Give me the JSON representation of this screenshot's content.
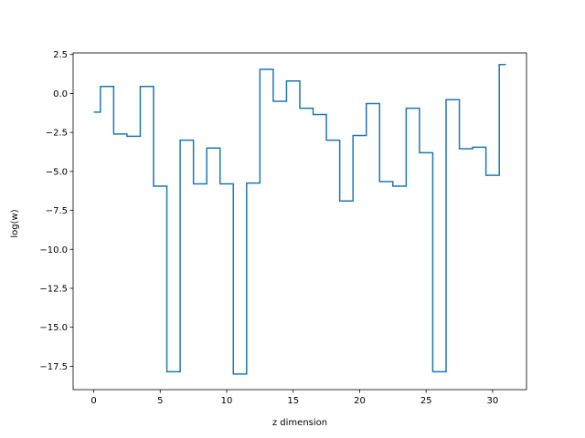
{
  "chart_data": {
    "type": "line",
    "drawstyle": "steps-mid",
    "title": "",
    "xlabel": "z dimension",
    "ylabel": "log(w)",
    "xlim": [
      -1.55,
      32.55
    ],
    "ylim": [
      -19.0,
      2.6
    ],
    "xticks": [
      0,
      5,
      10,
      15,
      20,
      25,
      30
    ],
    "xtick_labels": [
      "0",
      "5",
      "10",
      "15",
      "20",
      "25",
      "30"
    ],
    "yticks": [
      2.5,
      0.0,
      -2.5,
      -5.0,
      -7.5,
      -10.0,
      -12.5,
      -15.0,
      -17.5
    ],
    "ytick_labels": [
      "2.5",
      "0.0",
      "−2.5",
      "−5.0",
      "−7.5",
      "−10.0",
      "−12.5",
      "−15.0",
      "−17.5"
    ],
    "grid": false,
    "series": [
      {
        "color": "#1f77b4",
        "x": [
          0,
          1,
          2,
          3,
          4,
          5,
          6,
          7,
          8,
          9,
          10,
          11,
          12,
          13,
          14,
          15,
          16,
          17,
          18,
          19,
          20,
          21,
          22,
          23,
          24,
          25,
          26,
          27,
          28,
          29,
          30,
          31
        ],
        "values": [
          -1.2,
          0.45,
          -2.6,
          -2.75,
          0.45,
          -5.95,
          -17.85,
          -3.0,
          -5.8,
          -3.5,
          -5.8,
          -18.0,
          -5.75,
          1.55,
          -0.5,
          0.8,
          -0.95,
          -1.35,
          -3.0,
          -6.9,
          -2.7,
          -0.65,
          -5.65,
          -5.95,
          -0.95,
          -3.8,
          -17.85,
          -0.4,
          -3.55,
          -3.45,
          -5.25,
          1.85
        ]
      }
    ]
  }
}
